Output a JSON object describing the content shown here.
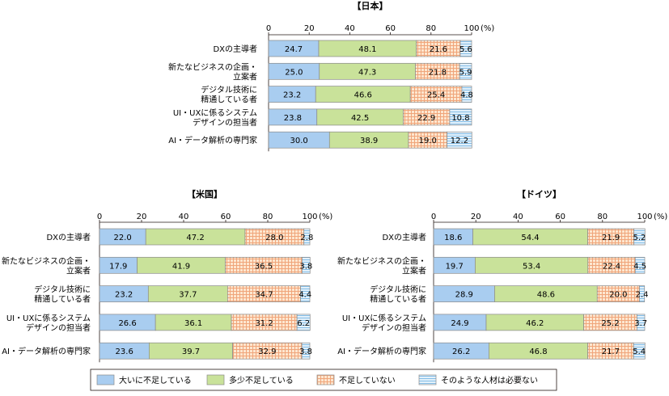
{
  "unit_label": "(%)",
  "colors": {
    "s0": "#a9cdf0",
    "s1": "#c9e29a",
    "s2_bg": "#fde6cf",
    "s2_line": "#f0a57a",
    "s3_bg": "#e3f1fb",
    "s3_line": "#84bde6",
    "border": "#8a8a8a"
  },
  "legend": [
    "大いに不足している",
    "多少不足している",
    "不足していない",
    "そのような人材は必要ない"
  ],
  "chart_data": [
    {
      "type": "bar",
      "orientation": "horizontal-stacked",
      "title": "【日本】",
      "categories": [
        [
          "DXの主導者"
        ],
        [
          "新たなビジネスの企画・",
          "立案者"
        ],
        [
          "デジタル技術に",
          "精通している者"
        ],
        [
          "UI・UXに係るシステム",
          "デザインの担当者"
        ],
        [
          "AI・データ解析の専門家"
        ]
      ],
      "xticks": [
        "0",
        "20",
        "40",
        "60",
        "80",
        "100"
      ],
      "xlim": [
        0,
        100
      ],
      "series": [
        {
          "name": "大いに不足している",
          "values": [
            24.7,
            25.0,
            23.2,
            23.8,
            30.0
          ]
        },
        {
          "name": "多少不足している",
          "values": [
            48.1,
            47.3,
            46.6,
            42.5,
            38.9
          ]
        },
        {
          "name": "不足していない",
          "values": [
            21.6,
            21.8,
            25.4,
            22.9,
            19.0
          ]
        },
        {
          "name": "そのような人材は必要ない",
          "values": [
            5.6,
            5.9,
            4.8,
            10.8,
            12.2
          ]
        }
      ]
    },
    {
      "type": "bar",
      "orientation": "horizontal-stacked",
      "title": "【米国】",
      "categories": [
        [
          "DXの主導者"
        ],
        [
          "新たなビジネスの企画・",
          "立案者"
        ],
        [
          "デジタル技術に",
          "精通している者"
        ],
        [
          "UI・UXに係るシステム",
          "デザインの担当者"
        ],
        [
          "AI・データ解析の専門家"
        ]
      ],
      "xticks": [
        "0",
        "20",
        "40",
        "60",
        "80",
        "100"
      ],
      "xlim": [
        0,
        100
      ],
      "series": [
        {
          "name": "大いに不足している",
          "values": [
            22.0,
            17.9,
            23.2,
            26.6,
            23.6
          ]
        },
        {
          "name": "多少不足している",
          "values": [
            47.2,
            41.9,
            37.7,
            36.1,
            39.7
          ]
        },
        {
          "name": "不足していない",
          "values": [
            28.0,
            36.5,
            34.7,
            31.2,
            32.9
          ]
        },
        {
          "name": "そのような人材は必要ない",
          "values": [
            2.8,
            3.8,
            4.4,
            6.2,
            3.8
          ]
        }
      ]
    },
    {
      "type": "bar",
      "orientation": "horizontal-stacked",
      "title": "【ドイツ】",
      "categories": [
        [
          "DXの主導者"
        ],
        [
          "新たなビジネスの企画・",
          "立案者"
        ],
        [
          "デジタル技術に",
          "精通している者"
        ],
        [
          "UI・UXに係るシステム",
          "デザインの担当者"
        ],
        [
          "AI・データ解析の専門家"
        ]
      ],
      "xticks": [
        "0",
        "20",
        "40",
        "60",
        "80",
        "100"
      ],
      "xlim": [
        0,
        100
      ],
      "series": [
        {
          "name": "大いに不足している",
          "values": [
            18.6,
            19.7,
            28.9,
            24.9,
            26.2
          ]
        },
        {
          "name": "多少不足している",
          "values": [
            54.4,
            53.4,
            48.6,
            46.2,
            46.8
          ]
        },
        {
          "name": "不足していない",
          "values": [
            21.9,
            22.4,
            20.0,
            25.2,
            21.7
          ]
        },
        {
          "name": "そのような人材は必要ない",
          "values": [
            5.2,
            4.5,
            2.4,
            3.7,
            5.4
          ]
        }
      ]
    }
  ]
}
